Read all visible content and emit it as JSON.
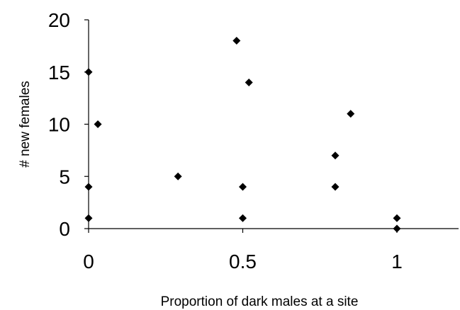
{
  "chart_data": {
    "type": "scatter",
    "title": "",
    "xlabel": "Proportion of dark males at a site",
    "ylabel": "# new females",
    "xlim": [
      0,
      1.2
    ],
    "ylim": [
      0,
      20
    ],
    "x_ticks": [
      0,
      0.5,
      1
    ],
    "x_tick_labels": [
      "0",
      "0.5",
      "1"
    ],
    "y_ticks": [
      0,
      5,
      10,
      15,
      20
    ],
    "y_tick_labels": [
      "0",
      "5",
      "10",
      "15",
      "20"
    ],
    "grid": false,
    "legend": "none",
    "marker": "diamond",
    "marker_color": "#000000",
    "series": [
      {
        "points": [
          {
            "x": 0,
            "y": 15
          },
          {
            "x": 0,
            "y": 4
          },
          {
            "x": 0,
            "y": 1
          },
          {
            "x": 0.03,
            "y": 10
          },
          {
            "x": 0.29,
            "y": 5
          },
          {
            "x": 0.48,
            "y": 18
          },
          {
            "x": 0.52,
            "y": 14
          },
          {
            "x": 0.5,
            "y": 4
          },
          {
            "x": 0.5,
            "y": 1
          },
          {
            "x": 0.8,
            "y": 7
          },
          {
            "x": 0.8,
            "y": 4
          },
          {
            "x": 0.85,
            "y": 11
          },
          {
            "x": 1,
            "y": 1
          },
          {
            "x": 1,
            "y": 0
          }
        ]
      }
    ]
  }
}
